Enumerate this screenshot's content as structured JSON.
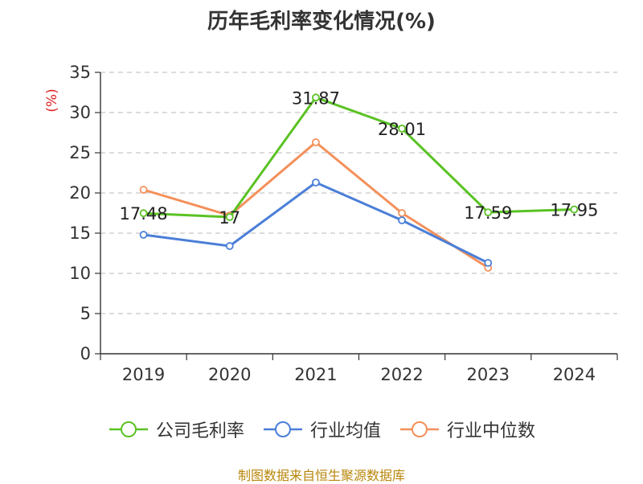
{
  "title": "历年毛利率变化情况(%)",
  "source": "制图数据来自恒生聚源数据库",
  "chart_data": {
    "type": "line",
    "title": "历年毛利率变化情况(%)",
    "ylabel": "(%)",
    "xlabel": "",
    "categories": [
      "2019",
      "2020",
      "2021",
      "2022",
      "2023",
      "2024"
    ],
    "ylim": [
      0,
      35
    ],
    "yticks": [
      0,
      5,
      10,
      15,
      20,
      25,
      30,
      35
    ],
    "grid": true,
    "legend_position": "bottom",
    "series": [
      {
        "name": "公司毛利率",
        "color": "#5ac224",
        "values": [
          17.48,
          17,
          31.87,
          28.01,
          17.59,
          17.95
        ],
        "labels": [
          "17.48",
          "17",
          "31.87",
          "28.01",
          "17.59",
          "17.95"
        ]
      },
      {
        "name": "行业均值",
        "color": "#4b7fd8",
        "values": [
          14.8,
          13.4,
          21.3,
          16.6,
          11.3,
          null
        ]
      },
      {
        "name": "行业中位数",
        "color": "#f4905a",
        "values": [
          20.4,
          17.2,
          26.3,
          17.5,
          10.7,
          null
        ]
      }
    ]
  }
}
